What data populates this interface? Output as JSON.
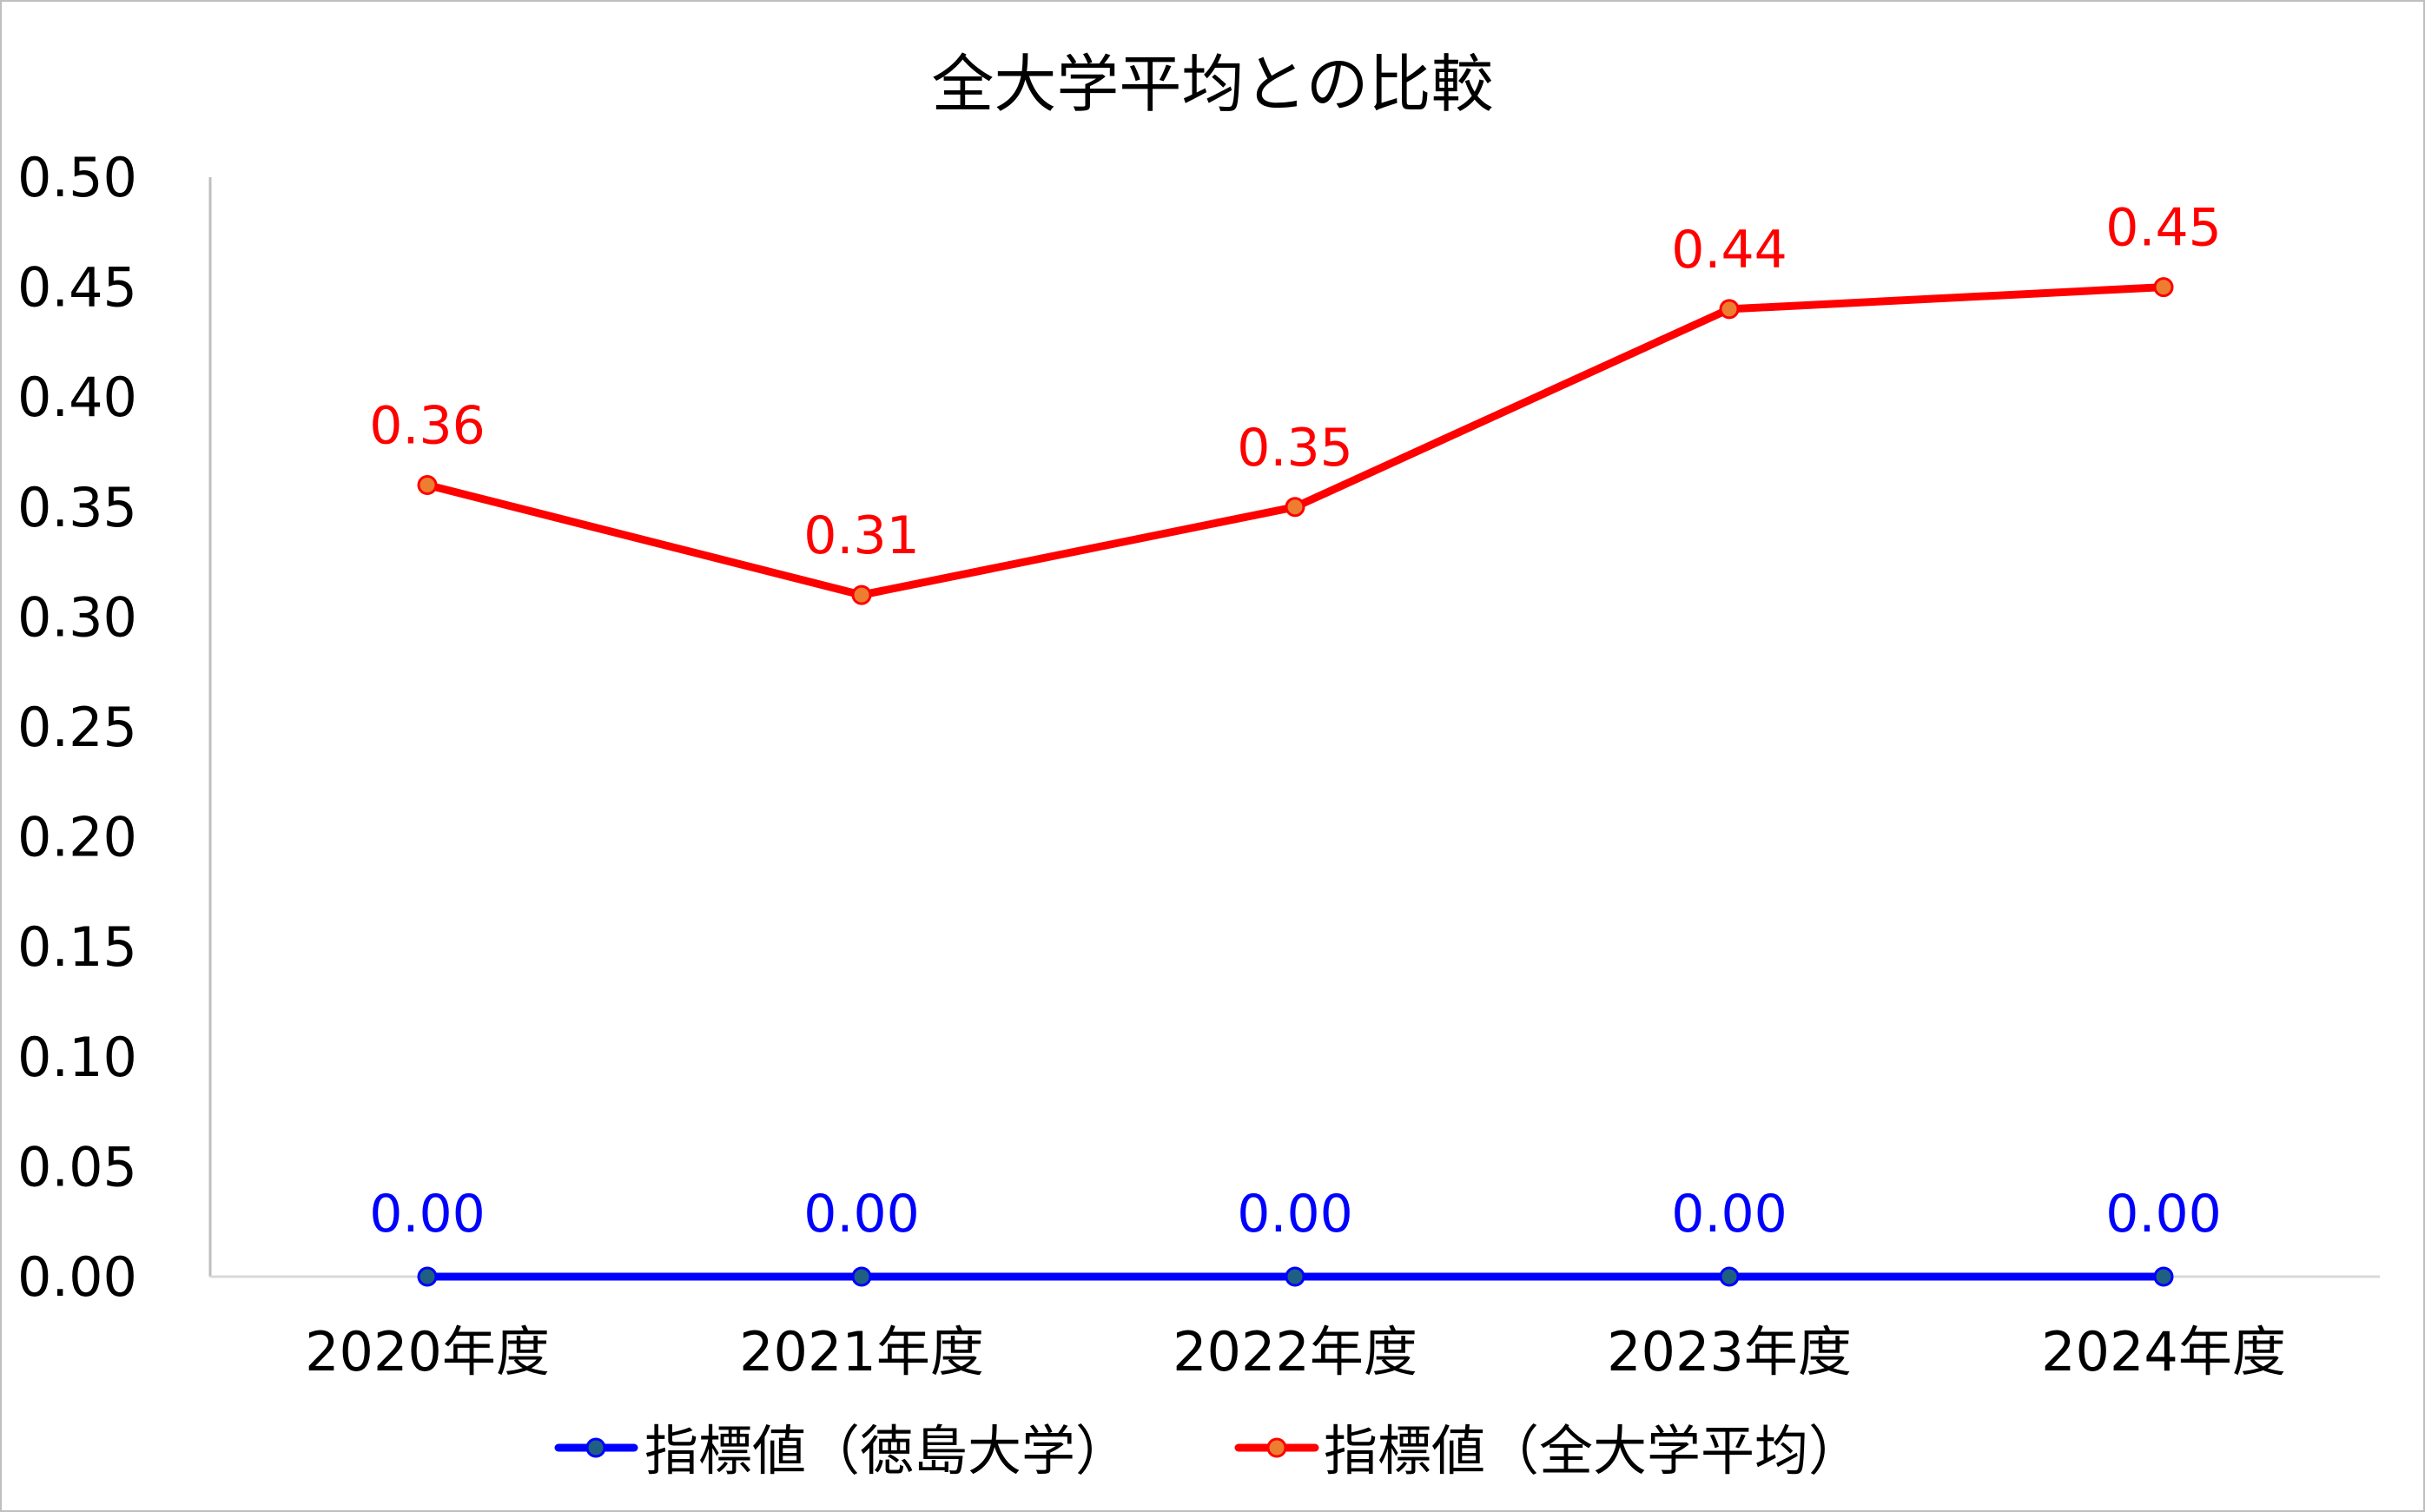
{
  "chart": {
    "title": "全大学平均との比較",
    "colors": {
      "series_tokushima_line": "#0000FF",
      "series_tokushima_marker_fill": "#1F5F82",
      "series_all_line": "#FF0000",
      "series_all_marker_fill": "#ED7D31",
      "axis": "#BFBFBF",
      "frame": "#BFBFBF"
    },
    "legend": [
      {
        "label": "指標値（徳島大学）"
      },
      {
        "label": "指標値（全大学平均）"
      }
    ]
  },
  "chart_data": {
    "type": "line",
    "title": "全大学平均との比較",
    "xlabel": "",
    "ylabel": "",
    "categories": [
      "2020年度",
      "2021年度",
      "2022年度",
      "2023年度",
      "2024年度"
    ],
    "series": [
      {
        "name": "指標値（徳島大学）",
        "values": [
          0.0,
          0.0,
          0.0,
          0.0,
          0.0
        ],
        "labels": [
          "0.00",
          "0.00",
          "0.00",
          "0.00",
          "0.00"
        ]
      },
      {
        "name": "指標値（全大学平均）",
        "values": [
          0.36,
          0.31,
          0.35,
          0.44,
          0.45
        ],
        "labels": [
          "0.36",
          "0.31",
          "0.35",
          "0.44",
          "0.45"
        ]
      }
    ],
    "yticks": [
      "0.00",
      "0.05",
      "0.10",
      "0.15",
      "0.20",
      "0.25",
      "0.30",
      "0.35",
      "0.40",
      "0.45",
      "0.50"
    ],
    "ylim": [
      0,
      0.5
    ],
    "grid": false,
    "legend_position": "bottom"
  }
}
